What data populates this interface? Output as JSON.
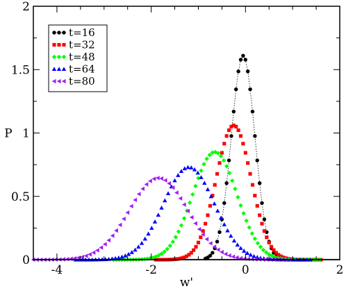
{
  "chart_data": {
    "type": "scatter",
    "xlabel": "w'",
    "ylabel": "P",
    "xlim": [
      -4.5,
      2
    ],
    "ylim": [
      0,
      2
    ],
    "x_ticks": [
      -4,
      -2,
      0,
      2
    ],
    "y_ticks": [
      0,
      0.5,
      1,
      1.5,
      2
    ],
    "x_tick_labels": [
      "-4",
      "-2",
      "0",
      "2"
    ],
    "y_tick_labels": [
      "0",
      "0.5",
      "1",
      "1.5",
      "2"
    ],
    "grid": false,
    "legend_position": "top-left",
    "series": [
      {
        "name": "t=16",
        "marker": "circle",
        "color": "#000000",
        "line": "dotted",
        "mu": -0.05,
        "sigma": 0.25,
        "peak": 1.61,
        "x_start": -0.85,
        "x_end": 1.25,
        "step": 0.05
      },
      {
        "name": "t=32",
        "marker": "square",
        "color": "#ff0000",
        "line": "none",
        "mu": -0.25,
        "sigma": 0.37,
        "peak": 1.06,
        "x_start": -1.9,
        "x_end": 1.6,
        "step": 0.05
      },
      {
        "name": "t=48",
        "marker": "diamond",
        "color": "#00ff00",
        "line": "none",
        "mu": -0.65,
        "sigma": 0.47,
        "peak": 0.85,
        "x_start": -2.8,
        "x_end": 1.6,
        "step": 0.06
      },
      {
        "name": "t=64",
        "marker": "triangle-up",
        "color": "#0000ff",
        "line": "none",
        "mu": -1.2,
        "sigma": 0.54,
        "peak": 0.73,
        "x_start": -3.6,
        "x_end": 1.4,
        "step": 0.07
      },
      {
        "name": "t=80",
        "marker": "triangle-left",
        "color": "#a020f0",
        "line": "none",
        "mu": -1.85,
        "sigma": 0.62,
        "peak": 0.645,
        "x_start": -4.5,
        "x_end": 1.0,
        "step": 0.08
      }
    ]
  }
}
